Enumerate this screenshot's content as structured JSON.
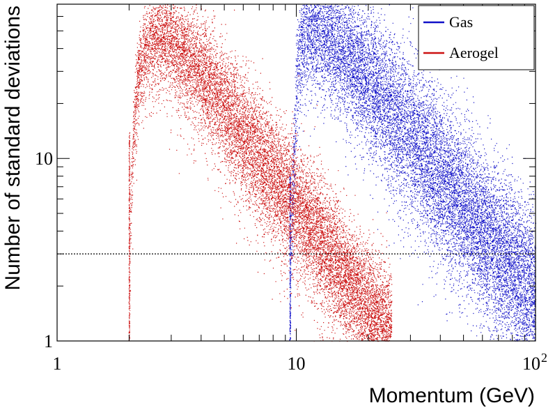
{
  "chart_data": {
    "type": "scatter",
    "xlabel": "Momentum (GeV)",
    "ylabel": "Number of standard deviations",
    "x_scale": "log",
    "y_scale": "log",
    "xlim": [
      1,
      100
    ],
    "ylim": [
      1,
      70
    ],
    "x_ticks": [
      {
        "value": 1,
        "label": "1"
      },
      {
        "value": 10,
        "label": "10"
      },
      {
        "value": 100,
        "label": "10",
        "exponent": "2"
      }
    ],
    "y_ticks": [
      {
        "value": 1,
        "label": "1"
      },
      {
        "value": 10,
        "label": "10"
      }
    ],
    "threshold_line": {
      "y": 3,
      "style": "dotted"
    },
    "legend": {
      "position": "top-right"
    },
    "series": [
      {
        "name": "Gas",
        "color": "#1010c8",
        "threshold_x": 9.4,
        "curve": [
          [
            9.4,
            2.0
          ],
          [
            9.7,
            8.0
          ],
          [
            10.0,
            28.0
          ],
          [
            10.5,
            46.0
          ],
          [
            11.5,
            52.0
          ],
          [
            13.0,
            49.0
          ],
          [
            15.0,
            42.0
          ],
          [
            20.0,
            28.0
          ],
          [
            30.0,
            14.0
          ],
          [
            40.0,
            8.4
          ],
          [
            60.0,
            4.1
          ],
          [
            80.0,
            2.6
          ],
          [
            100.0,
            1.75
          ]
        ],
        "spread": 0.38
      },
      {
        "name": "Aerogel",
        "color": "#cc1010",
        "threshold_x": 2.0,
        "curve": [
          [
            2.0,
            2.8
          ],
          [
            2.08,
            14.0
          ],
          [
            2.2,
            32.0
          ],
          [
            2.4,
            44.0
          ],
          [
            2.7,
            48.0
          ],
          [
            3.0,
            44.0
          ],
          [
            4.0,
            30.0
          ],
          [
            5.0,
            20.0
          ],
          [
            7.0,
            10.5
          ],
          [
            10.0,
            5.5
          ],
          [
            15.0,
            2.6
          ],
          [
            20.0,
            1.55
          ],
          [
            25.0,
            1.1
          ]
        ],
        "spread": 0.3
      }
    ]
  }
}
